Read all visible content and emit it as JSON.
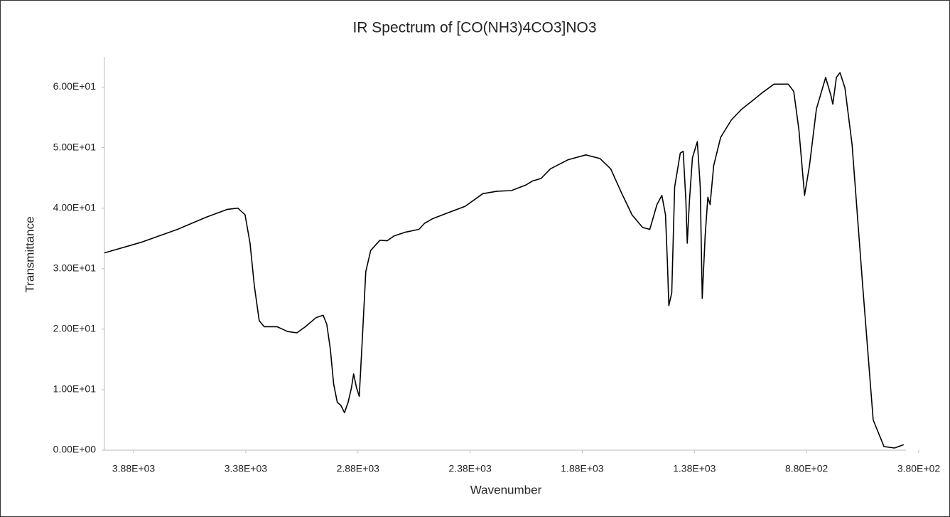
{
  "chart_data": {
    "type": "line",
    "title": "IR Spectrum of [CO(NH3)4CO3]NO3",
    "x_label": "Wavenumber",
    "y_label": "Transmittance",
    "xlim": [
      4010,
      437
    ],
    "ylim": [
      0,
      65
    ],
    "xticks": [
      {
        "value": 3880,
        "label": "3.88E+03"
      },
      {
        "value": 3380,
        "label": "3.38E+03"
      },
      {
        "value": 2880,
        "label": "2.88E+03"
      },
      {
        "value": 2380,
        "label": "2.38E+03"
      },
      {
        "value": 1880,
        "label": "1.88E+03"
      },
      {
        "value": 1380,
        "label": "1.38E+03"
      },
      {
        "value": 880,
        "label": "8.80E+02"
      },
      {
        "value": 380,
        "label": "3.80E+02"
      }
    ],
    "yticks": [
      {
        "value": 0,
        "label": "0.00E+00"
      },
      {
        "value": 10,
        "label": "1.00E+01"
      },
      {
        "value": 20,
        "label": "2.00E+01"
      },
      {
        "value": 30,
        "label": "3.00E+01"
      },
      {
        "value": 40,
        "label": "4.00E+01"
      },
      {
        "value": 50,
        "label": "5.00E+01"
      },
      {
        "value": 60,
        "label": "6.00E+01"
      }
    ],
    "grid": false,
    "series": [
      {
        "color": "#000000",
        "x": [
          4010,
          3842,
          3684,
          3557,
          3462,
          3415,
          3383,
          3361,
          3342,
          3320,
          3298,
          3241,
          3193,
          3152,
          3114,
          3067,
          3035,
          3019,
          3003,
          2988,
          2972,
          2956,
          2940,
          2924,
          2909,
          2899,
          2886,
          2874,
          2861,
          2845,
          2823,
          2782,
          2750,
          2719,
          2671,
          2608,
          2583,
          2545,
          2481,
          2402,
          2323,
          2260,
          2196,
          2133,
          2101,
          2064,
          2022,
          1943,
          1864,
          1801,
          1753,
          1706,
          1658,
          1611,
          1579,
          1547,
          1525,
          1509,
          1500,
          1494,
          1481,
          1468,
          1443,
          1430,
          1418,
          1412,
          1402,
          1389,
          1367,
          1354,
          1345,
          1332,
          1320,
          1310,
          1294,
          1263,
          1215,
          1168,
          1120,
          1073,
          1025,
          962,
          937,
          914,
          889,
          867,
          836,
          795,
          772,
          763,
          747,
          731,
          709,
          677,
          630,
          583,
          535,
          488,
          447
        ],
        "values": [
          32.6,
          34.4,
          36.5,
          38.5,
          39.8,
          40.0,
          38.9,
          34.2,
          27.2,
          21.4,
          20.4,
          20.4,
          19.6,
          19.4,
          20.4,
          21.9,
          22.3,
          20.8,
          16.7,
          10.9,
          7.9,
          7.4,
          6.2,
          7.9,
          10.3,
          12.6,
          10.3,
          8.9,
          17.9,
          29.5,
          33.0,
          34.7,
          34.6,
          35.4,
          36.0,
          36.5,
          37.5,
          38.3,
          39.2,
          40.3,
          42.4,
          42.8,
          42.9,
          43.8,
          44.5,
          44.9,
          46.5,
          48.0,
          48.8,
          48.2,
          46.5,
          42.6,
          38.9,
          36.8,
          36.5,
          40.6,
          42.1,
          38.9,
          30.7,
          23.9,
          26.0,
          43.5,
          49.1,
          49.4,
          41.2,
          34.2,
          41.2,
          48.3,
          51.0,
          43.5,
          25.1,
          35.4,
          41.8,
          40.6,
          47.0,
          51.7,
          54.6,
          56.4,
          57.8,
          59.2,
          60.5,
          60.5,
          59.3,
          52.9,
          42.1,
          47.0,
          56.4,
          61.6,
          58.7,
          57.2,
          61.6,
          62.4,
          59.9,
          50.5,
          27.2,
          5.0,
          0.6,
          0.35,
          0.9
        ]
      }
    ]
  }
}
